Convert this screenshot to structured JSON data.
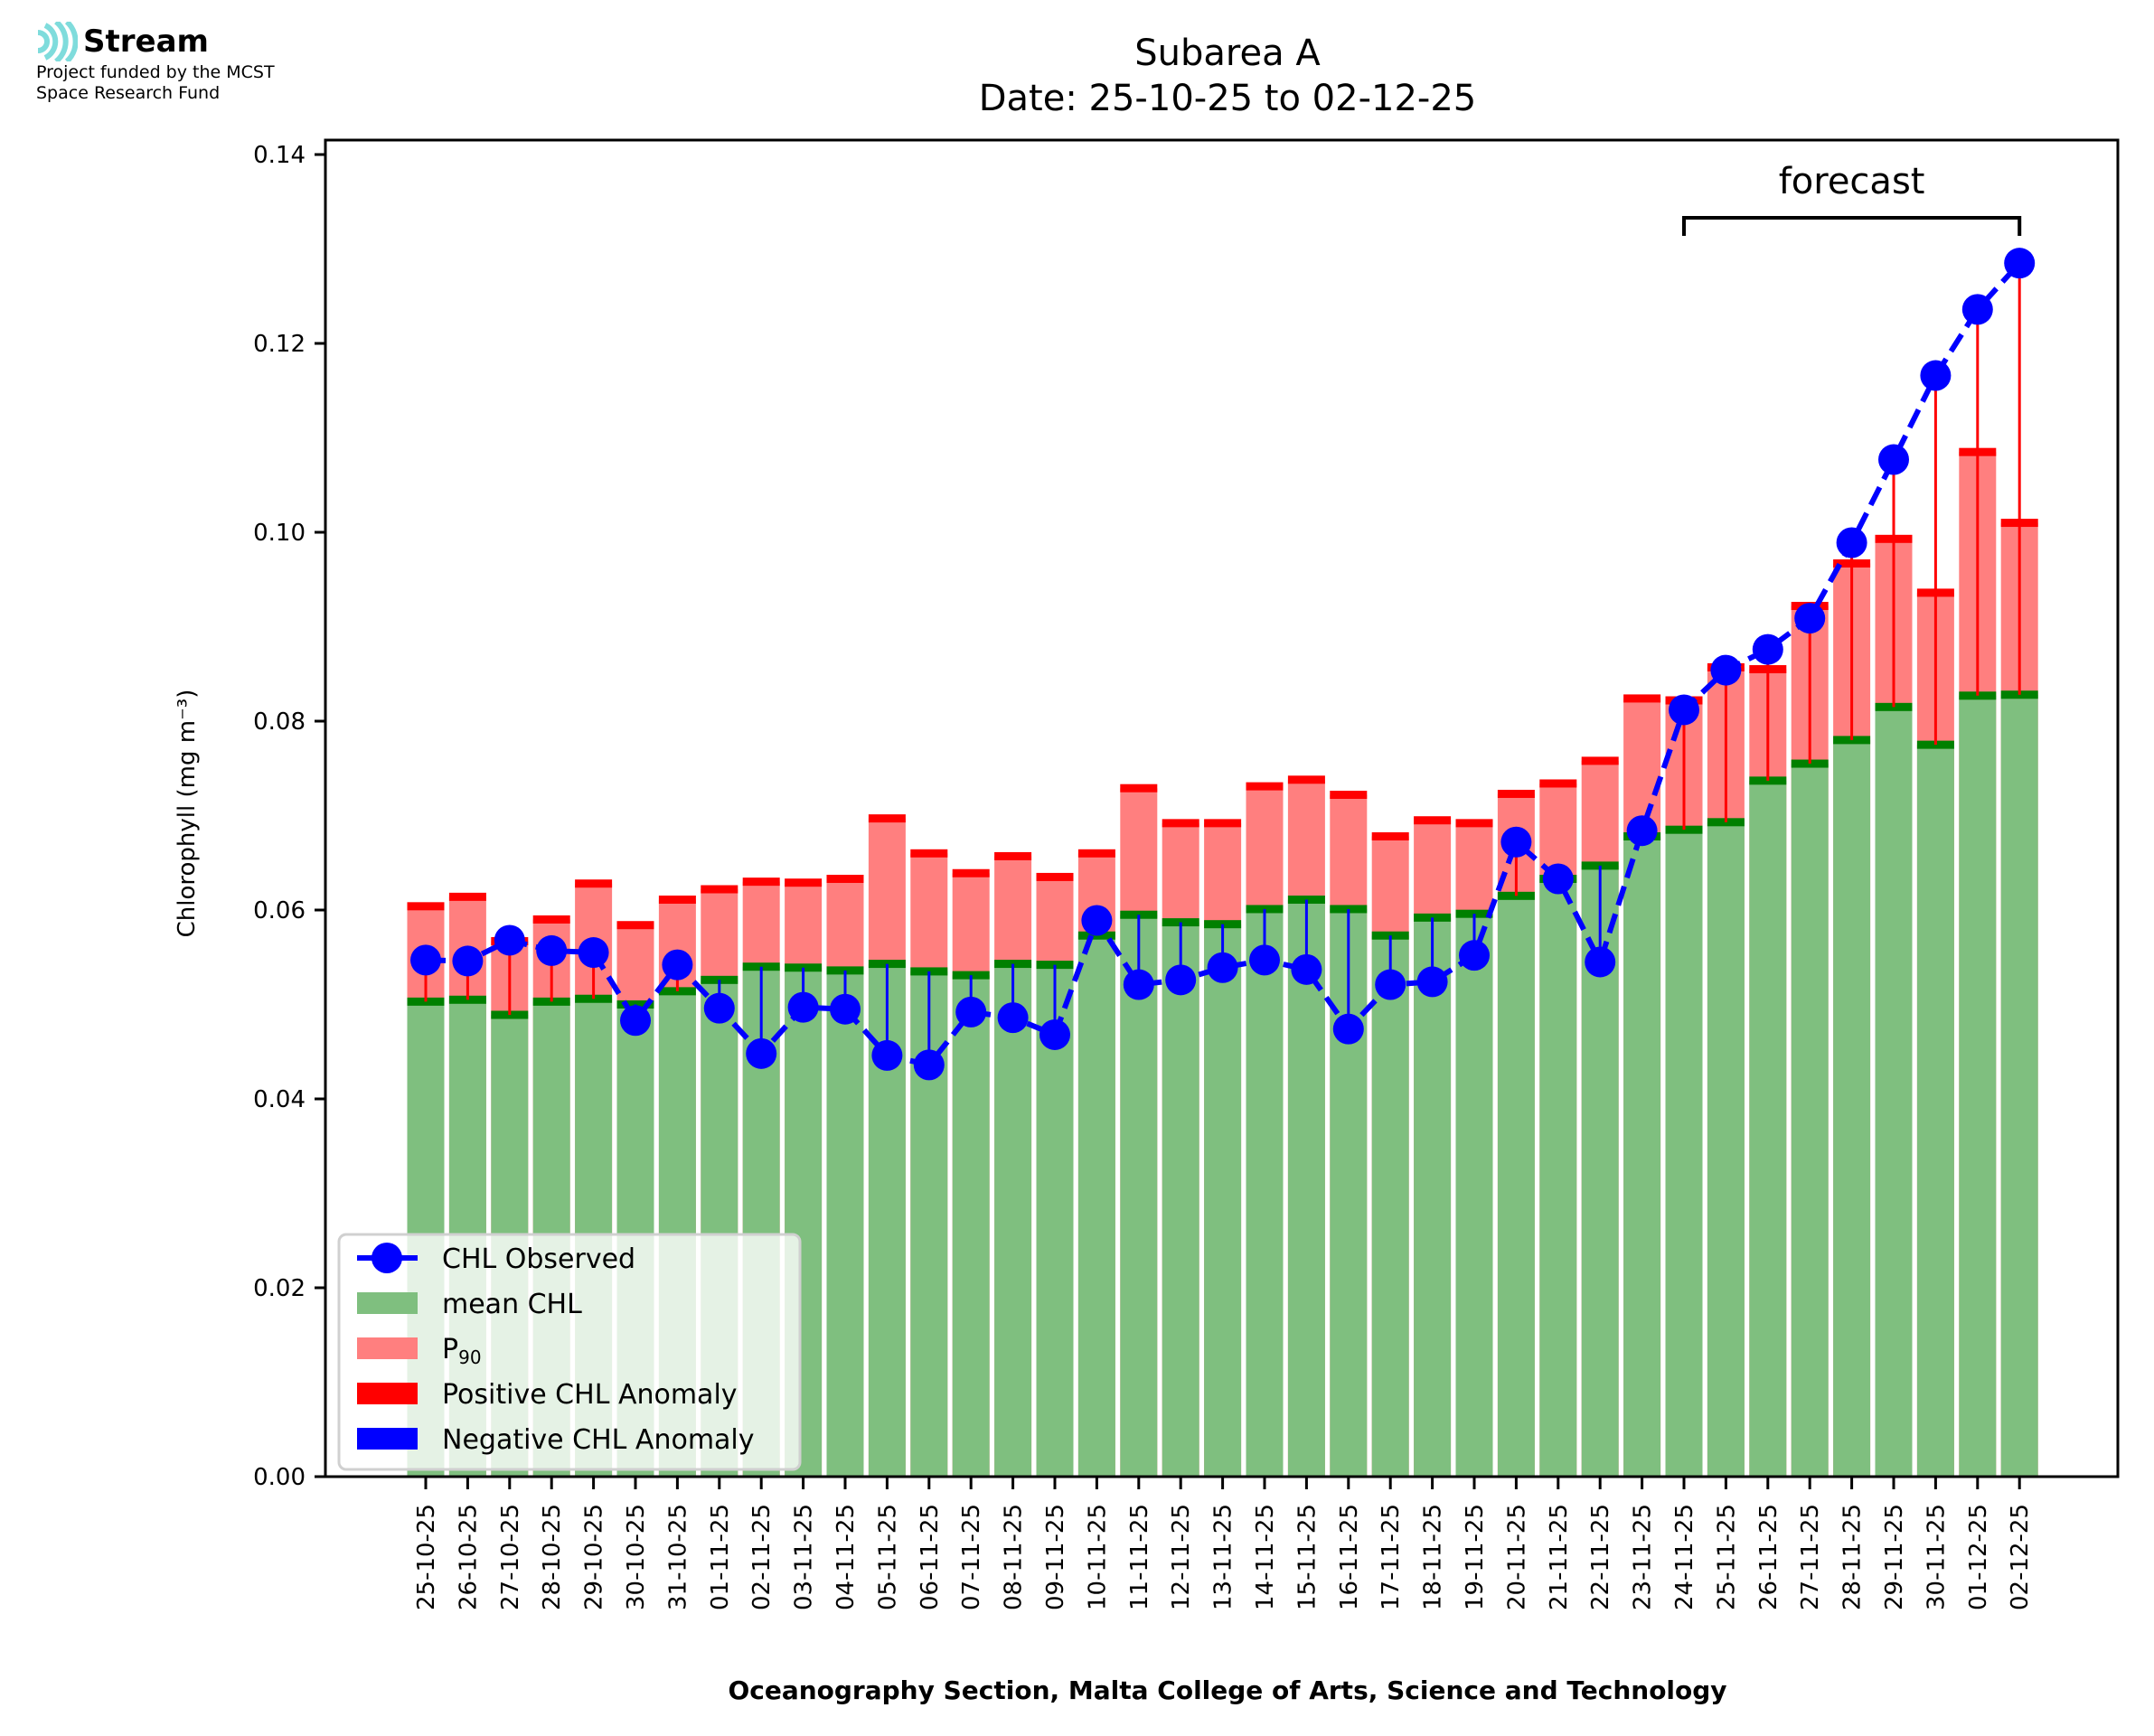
{
  "logo": {
    "brand_name": "Stream",
    "icon": "stream-waves-icon",
    "icon_color": "#7fdcdc",
    "funding_line1": "Project funded by the MCST",
    "funding_line2": "Space Research Fund"
  },
  "chart_data": {
    "type": "bar",
    "title": "Subarea A",
    "subtitle": "Date: 25-10-25 to 02-12-25",
    "xlabel": "Oceanography Section, Malta College of Arts, Science and Technology",
    "ylabel": "Chlorophyll (mg m⁻³)",
    "ylim": [
      0,
      0.14
    ],
    "yticks": [
      "0.00",
      "0.02",
      "0.04",
      "0.06",
      "0.08",
      "0.10",
      "0.12",
      "0.14"
    ],
    "ytick_values": [
      0,
      0.02,
      0.04,
      0.06,
      0.08,
      0.1,
      0.12,
      0.14
    ],
    "grid": false,
    "legend_position": "bottom-left",
    "categories": [
      "25-10-25",
      "26-10-25",
      "27-10-25",
      "28-10-25",
      "29-10-25",
      "30-10-25",
      "31-10-25",
      "01-11-25",
      "02-11-25",
      "03-11-25",
      "04-11-25",
      "05-11-25",
      "06-11-25",
      "07-11-25",
      "08-11-25",
      "09-11-25",
      "10-11-25",
      "11-11-25",
      "12-11-25",
      "13-11-25",
      "14-11-25",
      "15-11-25",
      "16-11-25",
      "17-11-25",
      "18-11-25",
      "19-11-25",
      "20-11-25",
      "21-11-25",
      "22-11-25",
      "23-11-25",
      "24-11-25",
      "25-11-25",
      "26-11-25",
      "27-11-25",
      "28-11-25",
      "29-11-25",
      "30-11-25",
      "01-12-25",
      "02-12-25"
    ],
    "series": [
      {
        "name": "mean CHL",
        "kind": "bar",
        "color": "#7fbf7f",
        "edge_color": "#008000",
        "values": [
          0.0503,
          0.0505,
          0.0489,
          0.0503,
          0.0506,
          0.05,
          0.0514,
          0.0526,
          0.054,
          0.0539,
          0.0536,
          0.0543,
          0.0535,
          0.0531,
          0.0543,
          0.0542,
          0.0573,
          0.0595,
          0.0587,
          0.0585,
          0.0601,
          0.0611,
          0.0601,
          0.0573,
          0.0592,
          0.0596,
          0.0615,
          0.0633,
          0.0647,
          0.0678,
          0.0685,
          0.0693,
          0.0737,
          0.0755,
          0.078,
          0.0815,
          0.0775,
          0.0827,
          0.0828
        ]
      },
      {
        "name": "P₉₀",
        "kind": "bar",
        "color": "#ff7f7f",
        "edge_color": "#ff0000",
        "values": [
          0.0604,
          0.0614,
          0.0567,
          0.059,
          0.0628,
          0.0584,
          0.0611,
          0.0622,
          0.063,
          0.0629,
          0.0633,
          0.0697,
          0.066,
          0.0639,
          0.0657,
          0.0635,
          0.066,
          0.0729,
          0.0692,
          0.0692,
          0.0731,
          0.0738,
          0.0722,
          0.0678,
          0.0695,
          0.0692,
          0.0723,
          0.0734,
          0.0758,
          0.0824,
          0.0822,
          0.0857,
          0.0855,
          0.0922,
          0.0967,
          0.0993,
          0.0936,
          0.1085,
          0.101
        ]
      },
      {
        "name": "CHL Observed",
        "kind": "line",
        "color": "#0000ff",
        "values": [
          0.0547,
          0.0546,
          0.0568,
          0.0557,
          0.0555,
          0.0483,
          0.0542,
          0.0496,
          0.0448,
          0.0497,
          0.0495,
          0.0446,
          0.0436,
          0.0492,
          0.0486,
          0.0468,
          0.0589,
          0.0521,
          0.0526,
          0.0539,
          0.0547,
          0.0537,
          0.0474,
          0.0521,
          0.0524,
          0.0552,
          0.0672,
          0.0633,
          0.0545,
          0.0684,
          0.0812,
          0.0854,
          0.0876,
          0.0909,
          0.0989,
          0.1077,
          0.1166,
          0.1236,
          0.1285
        ]
      }
    ],
    "legend": [
      {
        "label": "CHL Observed",
        "swatch": "line-marker",
        "color": "#0000ff"
      },
      {
        "label": "mean CHL",
        "swatch": "patch",
        "color": "#7fbf7f"
      },
      {
        "label": "P",
        "sub": "90",
        "swatch": "patch",
        "color": "#ff7f7f"
      },
      {
        "label": "Positive CHL Anomaly",
        "swatch": "patch",
        "color": "#ff0000"
      },
      {
        "label": "Negative CHL Anomaly",
        "swatch": "patch",
        "color": "#0000ff"
      }
    ],
    "annotations": [
      {
        "text": "forecast",
        "type": "bracket",
        "from": "24-11-25",
        "to": "02-12-25"
      }
    ],
    "anomaly_colors": {
      "positive": "#ff0000",
      "negative": "#0000ff"
    }
  }
}
